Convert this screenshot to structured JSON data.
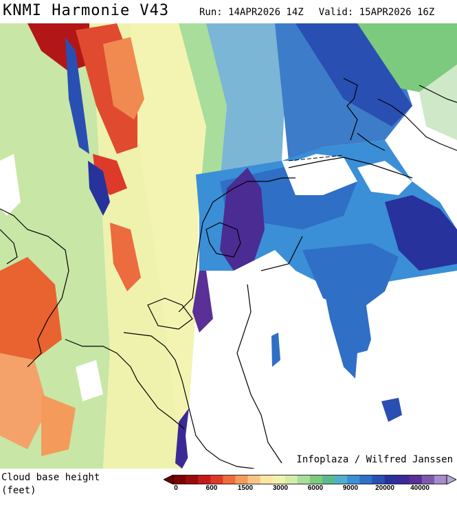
{
  "header": {
    "title": "KNMI Harmonie V43",
    "run": "Run: 14APR2026 14Z",
    "valid": "Valid: 15APR2026 16Z"
  },
  "map": {
    "variable": "Cloud base height",
    "region_features": [
      "north-sea",
      "netherlands",
      "belgium",
      "germany",
      "england",
      "ijsselmeer",
      "wadden-islands"
    ]
  },
  "credit": "Infoplaza / Wilfred Janssen",
  "legend": {
    "title_line1": "Cloud base height",
    "title_line2": "(feet)",
    "tick_labels": [
      "0",
      "600",
      "1500",
      "3000",
      "6000",
      "9000",
      "20000",
      "40000"
    ],
    "colors": [
      "#7a0403",
      "#9b0b0b",
      "#c41a1a",
      "#dd3a2a",
      "#ec6b3f",
      "#f49b5c",
      "#f8c585",
      "#fbe6a6",
      "#f0f4aa",
      "#d4ecaa",
      "#a9dd9b",
      "#7cca7e",
      "#5bb98f",
      "#52aecb",
      "#3a8fd6",
      "#2f6fc6",
      "#2a4fb3",
      "#27329d",
      "#3b2a95",
      "#5a2f97",
      "#7c59ad",
      "#a58ccb"
    ]
  }
}
